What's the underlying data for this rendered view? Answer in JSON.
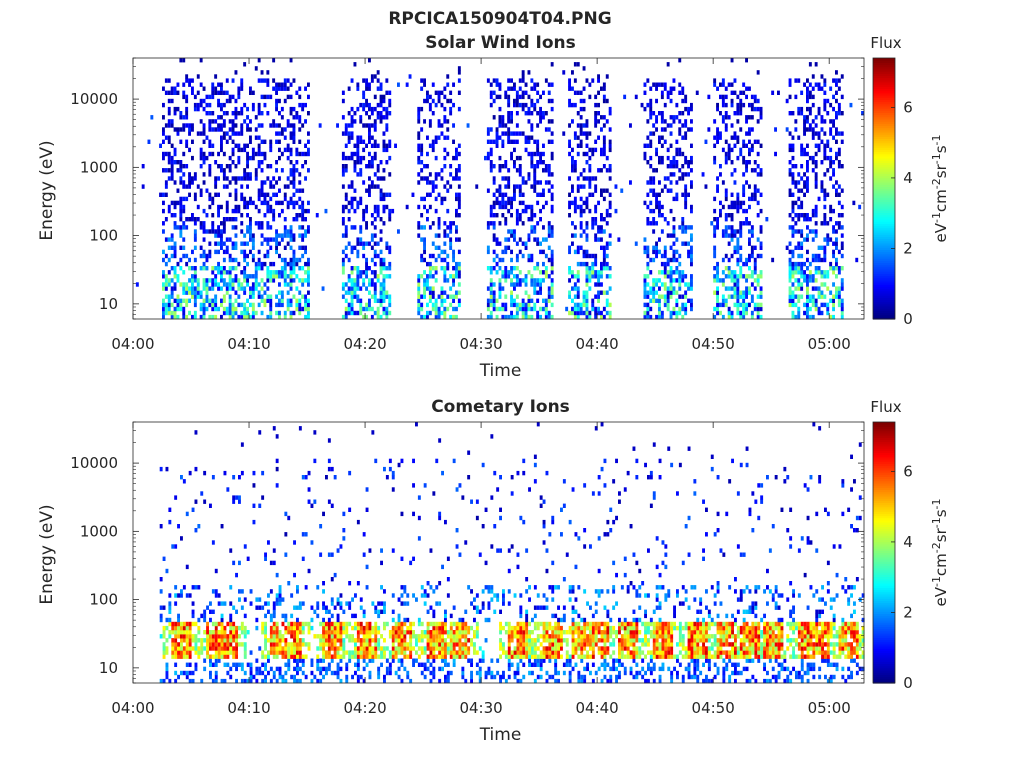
{
  "figure": {
    "title": "RPCICA150904T04.PNG"
  },
  "chart_data": [
    {
      "type": "heatmap",
      "title": "Solar Wind Ions",
      "xlabel": "Time",
      "ylabel": "Energy (eV)",
      "y_scale": "log",
      "xlim_minutes": [
        0,
        63
      ],
      "ylim": [
        6,
        40000
      ],
      "x_ticks": [
        "04:00",
        "04:10",
        "04:20",
        "04:30",
        "04:40",
        "04:50",
        "05:00"
      ],
      "y_ticks": [
        "10",
        "100",
        "1000",
        "10000"
      ],
      "colorbar": {
        "label": "Flux",
        "unit": "eV-1cm-2sr-1s-1",
        "range": [
          0,
          7.4
        ],
        "ticks": [
          "0",
          "2",
          "4",
          "6"
        ],
        "colormap": "jet"
      },
      "activity_bands_minutes": [
        [
          2.3,
          15
        ],
        [
          18,
          22
        ],
        [
          24.5,
          28
        ],
        [
          30.5,
          36
        ],
        [
          37.5,
          41
        ],
        [
          44,
          48
        ],
        [
          50,
          54
        ],
        [
          56.5,
          61
        ]
      ]
    },
    {
      "type": "heatmap",
      "title": "Cometary Ions",
      "xlabel": "Time",
      "ylabel": "Energy (eV)",
      "y_scale": "log",
      "xlim_minutes": [
        0,
        63
      ],
      "ylim": [
        6,
        40000
      ],
      "x_ticks": [
        "04:00",
        "04:10",
        "04:20",
        "04:30",
        "04:40",
        "04:50",
        "05:00"
      ],
      "y_ticks": [
        "10",
        "100",
        "1000",
        "10000"
      ],
      "colorbar": {
        "label": "Flux",
        "unit": "eV-1cm-2sr-1s-1",
        "range": [
          0,
          7.4
        ],
        "ticks": [
          "0",
          "2",
          "4",
          "6"
        ],
        "colormap": "jet"
      },
      "hot_spots_minutes": [
        4,
        7,
        8,
        12.5,
        13.5,
        17,
        20,
        23,
        26,
        28,
        33,
        36,
        38.5,
        40,
        42.5,
        45.5,
        48.5,
        51,
        53,
        55,
        58,
        59,
        61.5
      ]
    }
  ]
}
